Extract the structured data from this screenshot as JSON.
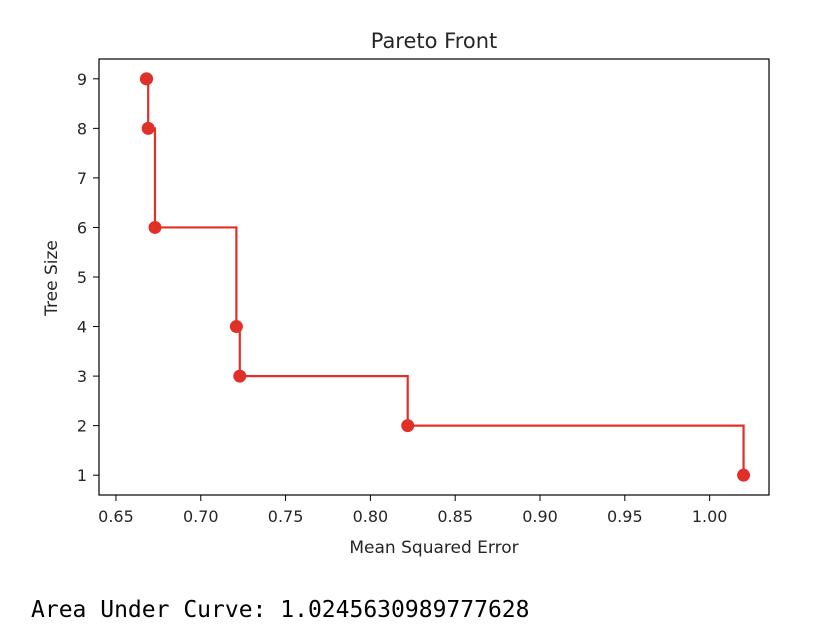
{
  "chart_data": {
    "type": "line",
    "title": "Pareto Front",
    "xlabel": "Mean Squared Error",
    "ylabel": "Tree Size",
    "xlim": [
      0.64,
      1.035
    ],
    "ylim": [
      0.6,
      9.4
    ],
    "xticks": [
      "0.65",
      "0.70",
      "0.75",
      "0.80",
      "0.85",
      "0.90",
      "0.95",
      "1.00"
    ],
    "yticks": [
      "1",
      "2",
      "3",
      "4",
      "5",
      "6",
      "7",
      "8",
      "9"
    ],
    "grid": false,
    "legend": "none",
    "series": [
      {
        "style": "step-post",
        "color": "#e03128",
        "x": [
          0.668,
          0.668,
          0.669,
          0.673,
          0.721,
          0.723,
          0.822,
          1.02
        ],
        "y": [
          9,
          9,
          8,
          6,
          4,
          3,
          2,
          1
        ]
      }
    ]
  },
  "footer": {
    "auc_text": "Area Under Curve: 1.0245630989777628"
  }
}
